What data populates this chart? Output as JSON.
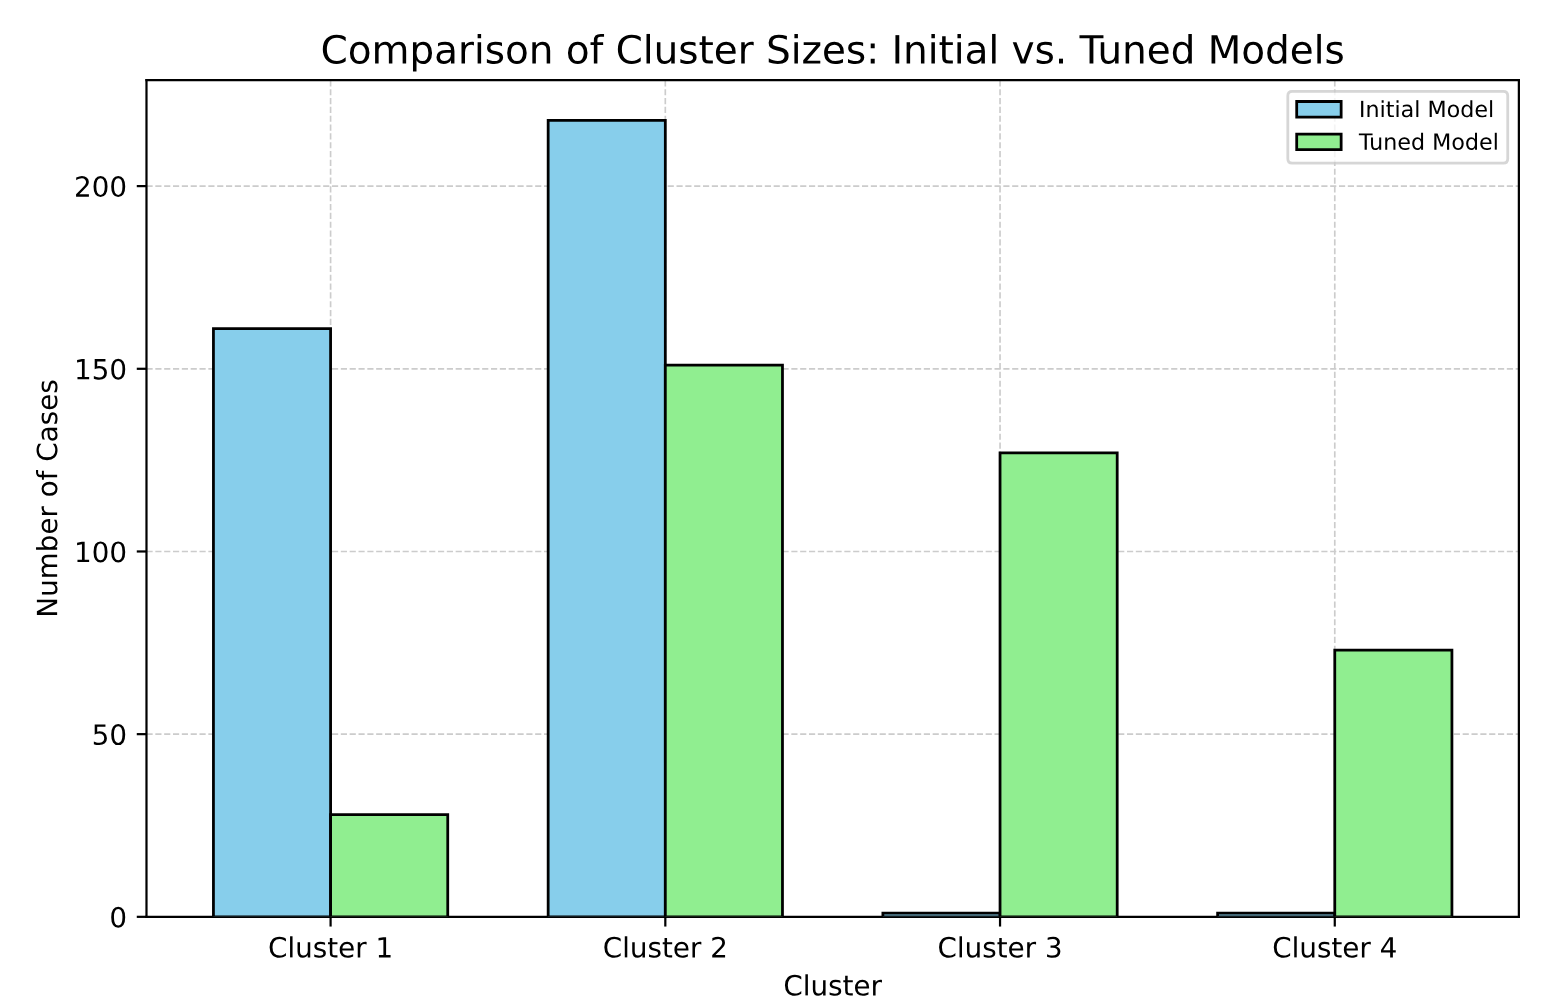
{
  "chart_data": {
    "type": "bar",
    "title": "Comparison of Cluster Sizes: Initial vs. Tuned Models",
    "xlabel": "Cluster",
    "ylabel": "Number of Cases",
    "categories": [
      "Cluster 1",
      "Cluster 2",
      "Cluster 3",
      "Cluster 4"
    ],
    "series": [
      {
        "name": "Initial Model",
        "color": "#87ceeb",
        "values": [
          161,
          218,
          1,
          1
        ]
      },
      {
        "name": "Tuned Model",
        "color": "#90ee90",
        "values": [
          28,
          151,
          127,
          73
        ]
      }
    ],
    "ylim": [
      0,
      229
    ],
    "yticks": [
      0,
      50,
      100,
      150,
      200
    ],
    "grid": true,
    "legend": "top right"
  }
}
